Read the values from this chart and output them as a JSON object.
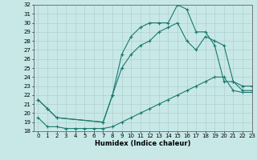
{
  "xlabel": "Humidex (Indice chaleur)",
  "bg_color": "#c8e8e8",
  "line_color": "#1a7a6e",
  "grid_color": "#b0d0d0",
  "ylim": [
    18,
    32
  ],
  "xlim": [
    -0.5,
    23
  ],
  "yticks": [
    18,
    19,
    20,
    21,
    22,
    23,
    24,
    25,
    26,
    27,
    28,
    29,
    30,
    31,
    32
  ],
  "xticks": [
    0,
    1,
    2,
    3,
    4,
    5,
    6,
    7,
    8,
    9,
    10,
    11,
    12,
    13,
    14,
    15,
    16,
    17,
    18,
    19,
    20,
    21,
    22,
    23
  ],
  "line1_x": [
    0,
    1,
    2,
    3,
    4,
    5,
    6,
    7,
    8,
    9,
    10,
    11,
    12,
    13,
    14,
    15,
    16,
    17,
    18,
    19,
    20,
    21,
    22,
    23
  ],
  "line1_y": [
    19.5,
    18.5,
    18.5,
    18.3,
    18.3,
    18.3,
    18.3,
    18.3,
    18.5,
    19.0,
    19.5,
    20.0,
    20.5,
    21.0,
    21.5,
    22.0,
    22.5,
    23.0,
    23.5,
    24.0,
    24.0,
    22.5,
    22.3,
    22.3
  ],
  "line2_x": [
    0,
    1,
    2,
    7,
    8,
    9,
    10,
    11,
    12,
    13,
    14,
    15,
    16,
    17,
    18,
    19,
    20,
    21,
    22,
    23
  ],
  "line2_y": [
    21.5,
    20.5,
    19.5,
    19.0,
    22.0,
    25.0,
    26.5,
    27.5,
    28.0,
    29.0,
    29.5,
    30.0,
    28.0,
    27.0,
    28.5,
    28.0,
    27.5,
    23.5,
    22.5,
    22.5
  ],
  "line3_x": [
    0,
    1,
    2,
    7,
    8,
    9,
    10,
    11,
    12,
    13,
    14,
    15,
    16,
    17,
    18,
    19,
    20,
    21,
    22,
    23
  ],
  "line3_y": [
    21.5,
    20.5,
    19.5,
    19.0,
    22.0,
    26.5,
    28.5,
    29.5,
    30.0,
    30.0,
    30.0,
    32.0,
    31.5,
    29.0,
    29.0,
    27.5,
    23.5,
    23.5,
    23.0,
    23.0
  ]
}
